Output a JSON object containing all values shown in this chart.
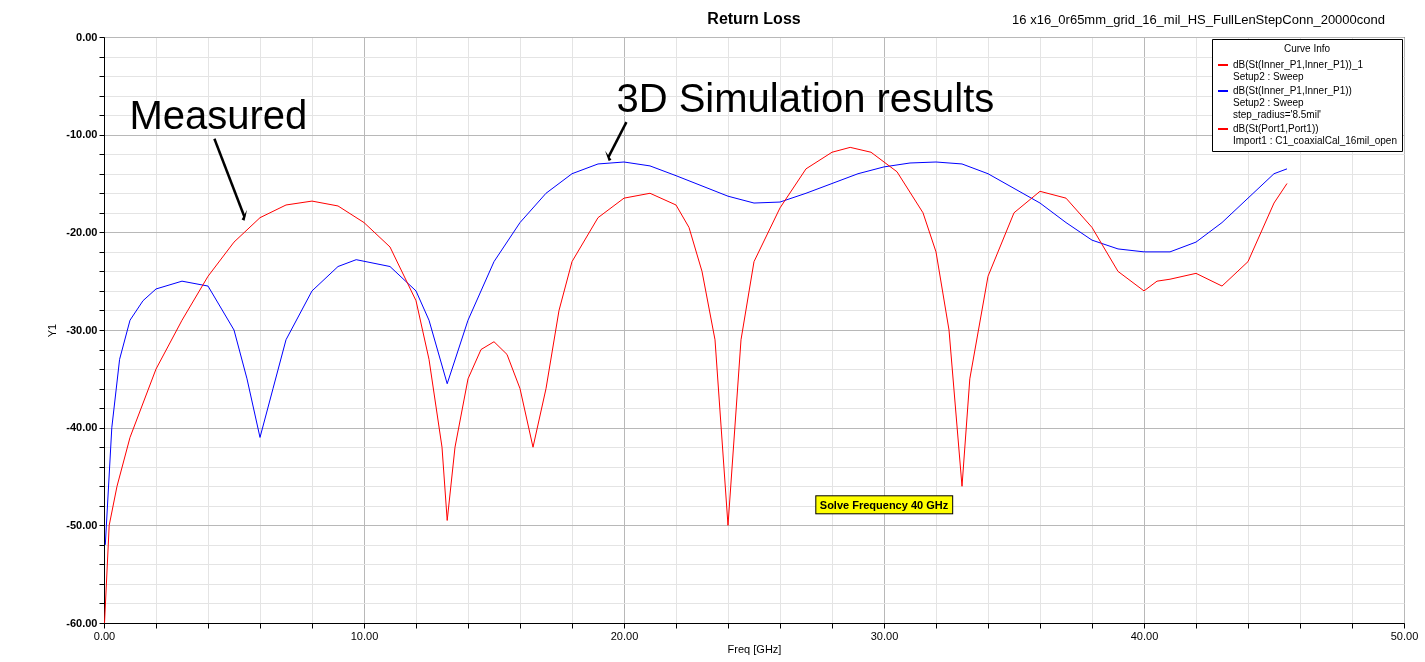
{
  "chart_data": {
    "type": "line",
    "title": "Return Loss",
    "subtitle": "16 x16_0r65mm_grid_16_mil_HS_FullLenStepConn_20000cond",
    "xlabel": "Freq [GHz]",
    "ylabel": "Y1",
    "legend_title": "Curve Info",
    "legend": "top right",
    "grid": true,
    "xlim": [
      0,
      50
    ],
    "ylim": [
      -60,
      0
    ],
    "xticks": [
      {
        "value": 0,
        "label": "0.00"
      },
      {
        "value": 2,
        "label": null
      },
      {
        "value": 4,
        "label": null
      },
      {
        "value": 6,
        "label": null
      },
      {
        "value": 8,
        "label": null
      },
      {
        "value": 10,
        "label": "10.00"
      },
      {
        "value": 12,
        "label": null
      },
      {
        "value": 14,
        "label": null
      },
      {
        "value": 16,
        "label": null
      },
      {
        "value": 18,
        "label": null
      },
      {
        "value": 20,
        "label": "20.00"
      },
      {
        "value": 22,
        "label": null
      },
      {
        "value": 24,
        "label": null
      },
      {
        "value": 26,
        "label": null
      },
      {
        "value": 28,
        "label": null
      },
      {
        "value": 30,
        "label": "30.00"
      },
      {
        "value": 32,
        "label": null
      },
      {
        "value": 34,
        "label": null
      },
      {
        "value": 36,
        "label": null
      },
      {
        "value": 38,
        "label": null
      },
      {
        "value": 40,
        "label": "40.00"
      },
      {
        "value": 42,
        "label": null
      },
      {
        "value": 44,
        "label": null
      },
      {
        "value": 46,
        "label": null
      },
      {
        "value": 48,
        "label": null
      },
      {
        "value": 50,
        "label": "50.00"
      }
    ],
    "yticks": [
      {
        "value": -60,
        "label": "-60.00"
      },
      {
        "value": -58,
        "label": null
      },
      {
        "value": -56,
        "label": null
      },
      {
        "value": -54,
        "label": null
      },
      {
        "value": -52,
        "label": null
      },
      {
        "value": -50,
        "label": "-50.00"
      },
      {
        "value": -48,
        "label": null
      },
      {
        "value": -46,
        "label": null
      },
      {
        "value": -44,
        "label": null
      },
      {
        "value": -42,
        "label": null
      },
      {
        "value": -40,
        "label": "-40.00"
      },
      {
        "value": -38,
        "label": null
      },
      {
        "value": -36,
        "label": null
      },
      {
        "value": -34,
        "label": null
      },
      {
        "value": -32,
        "label": null
      },
      {
        "value": -30,
        "label": "-30.00"
      },
      {
        "value": -28,
        "label": null
      },
      {
        "value": -26,
        "label": null
      },
      {
        "value": -24,
        "label": null
      },
      {
        "value": -22,
        "label": null
      },
      {
        "value": -20,
        "label": "-20.00"
      },
      {
        "value": -18,
        "label": null
      },
      {
        "value": -16,
        "label": null
      },
      {
        "value": -14,
        "label": null
      },
      {
        "value": -12,
        "label": null
      },
      {
        "value": -10,
        "label": "-10.00"
      },
      {
        "value": -8,
        "label": null
      },
      {
        "value": -6,
        "label": null
      },
      {
        "value": -4,
        "label": null
      },
      {
        "value": -2,
        "label": null
      },
      {
        "value": 0,
        "label": "0.00"
      }
    ],
    "annotations": [
      {
        "text": "Measured",
        "x": 5.4,
        "y": -18.4
      },
      {
        "text": "3D Simulation results",
        "x": 19.4,
        "y": -12.3
      },
      "Solve Frequency 40 GHz"
    ],
    "series": [
      {
        "name": "dB(St(Inner_P1,Inner_P1))_1\nSetup2 : Sweep",
        "color": "#ff0000"
      },
      {
        "name": "dB(St(Inner_P1,Inner_P1))\nSetup2 : Sweep\nstep_radius='8.5mil'",
        "color": "#0000ff",
        "x": [
          0.05,
          0.3,
          0.6,
          1,
          1.5,
          2,
          3,
          4,
          5,
          5.5,
          6,
          6.5,
          7,
          8,
          9,
          9.7,
          11,
          12,
          12.5,
          13.2,
          14,
          15,
          16,
          17,
          18,
          19,
          20,
          21,
          22,
          24,
          25,
          26,
          27,
          28,
          29,
          30,
          31,
          32,
          33,
          34,
          35,
          36,
          37,
          38,
          39,
          40,
          41,
          42,
          43,
          44,
          45,
          45.5
        ],
        "values": [
          -52,
          -40,
          -33,
          -29,
          -27,
          -25.8,
          -25,
          -25.5,
          -30,
          -35,
          -41,
          -36,
          -31,
          -26,
          -23.5,
          -22.8,
          -23.5,
          -26,
          -29,
          -35.5,
          -29,
          -23,
          -19,
          -16,
          -14,
          -13,
          -12.8,
          -13.2,
          -14.2,
          -16.3,
          -17,
          -16.9,
          -16,
          -15,
          -14,
          -13.3,
          -12.9,
          -12.8,
          -13,
          -14,
          -15.5,
          -17,
          -19,
          -20.8,
          -21.7,
          -22,
          -22,
          -21,
          -19,
          -16.5,
          -14,
          -13.5
        ]
      },
      {
        "name": "dB(St(Port1,Port1))\nImport1 : C1_coaxialCal_16mil_open",
        "color": "#ff0000",
        "x": [
          0.02,
          0.2,
          0.5,
          1,
          2,
          3,
          4,
          5,
          6,
          7,
          8,
          9,
          10,
          11,
          12,
          12.5,
          13,
          13.2,
          13.5,
          14,
          14.5,
          15,
          15.5,
          16,
          16.5,
          17,
          17.5,
          18,
          19,
          20,
          21,
          22,
          22.5,
          23,
          23.5,
          24,
          24.5,
          25,
          26,
          27,
          28,
          28.7,
          29.5,
          30.5,
          31.5,
          32,
          32.5,
          33,
          33.3,
          34,
          35,
          36,
          37,
          38,
          39,
          40,
          40.5,
          41,
          42,
          43,
          44,
          45,
          45.5
        ],
        "values": [
          -60,
          -50,
          -46,
          -41,
          -34,
          -29,
          -24.5,
          -21,
          -18.5,
          -17.2,
          -16.8,
          -17.3,
          -19,
          -21.5,
          -27,
          -33,
          -42,
          -49.5,
          -42,
          -35,
          -32,
          -31.2,
          -32.5,
          -36,
          -42,
          -36,
          -28,
          -23,
          -18.5,
          -16.5,
          -16,
          -17.2,
          -19.5,
          -24,
          -31,
          -50,
          -31,
          -23,
          -17.5,
          -13.5,
          -11.8,
          -11.3,
          -11.8,
          -13.8,
          -18,
          -22,
          -30,
          -46,
          -35,
          -24.5,
          -18,
          -15.8,
          -16.5,
          -19.5,
          -24,
          -26,
          -25,
          -24.8,
          -24.2,
          -25.5,
          -23,
          -17,
          -15
        ]
      }
    ]
  }
}
